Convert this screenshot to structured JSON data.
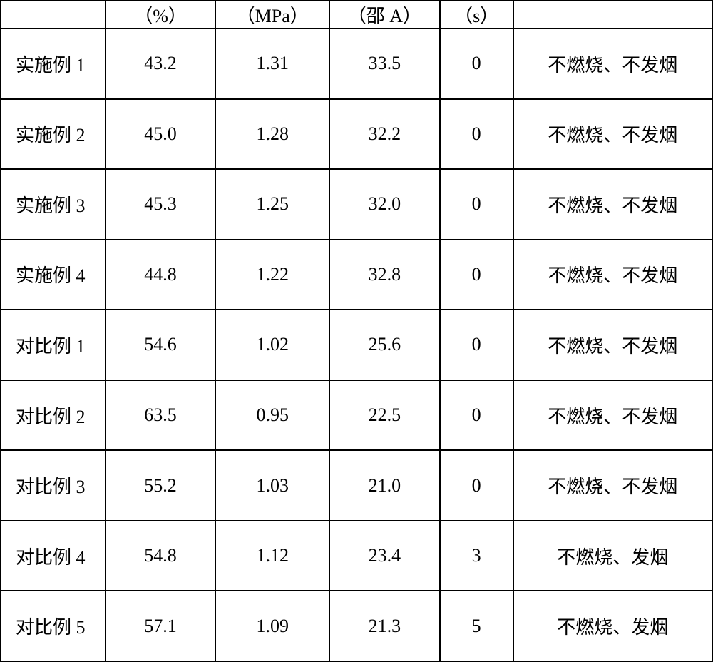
{
  "table": {
    "type": "table",
    "background_color": "#ffffff",
    "border_color": "#000000",
    "text_color": "#000000",
    "font_size": 26,
    "columns": [
      {
        "key": "label",
        "header": "",
        "width_pct": 14.7,
        "align": "left"
      },
      {
        "key": "pct",
        "header": "（%）",
        "width_pct": 15.5,
        "align": "center"
      },
      {
        "key": "mpa",
        "header": "（MPa）",
        "width_pct": 16,
        "align": "center"
      },
      {
        "key": "shore",
        "header": "（邵 A）",
        "width_pct": 15.5,
        "align": "center"
      },
      {
        "key": "s",
        "header": "（s）",
        "width_pct": 10.3,
        "align": "center"
      },
      {
        "key": "desc",
        "header": "",
        "width_pct": 28,
        "align": "center"
      }
    ],
    "rows": [
      {
        "label": "实施例 1",
        "pct": "43.2",
        "mpa": "1.31",
        "shore": "33.5",
        "s": "0",
        "desc": "不燃烧、不发烟"
      },
      {
        "label": "实施例 2",
        "pct": "45.0",
        "mpa": "1.28",
        "shore": "32.2",
        "s": "0",
        "desc": "不燃烧、不发烟"
      },
      {
        "label": "实施例 3",
        "pct": "45.3",
        "mpa": "1.25",
        "shore": "32.0",
        "s": "0",
        "desc": "不燃烧、不发烟"
      },
      {
        "label": "实施例 4",
        "pct": "44.8",
        "mpa": "1.22",
        "shore": "32.8",
        "s": "0",
        "desc": "不燃烧、不发烟"
      },
      {
        "label": "对比例 1",
        "pct": "54.6",
        "mpa": "1.02",
        "shore": "25.6",
        "s": "0",
        "desc": "不燃烧、不发烟"
      },
      {
        "label": "对比例 2",
        "pct": "63.5",
        "mpa": "0.95",
        "shore": "22.5",
        "s": "0",
        "desc": "不燃烧、不发烟"
      },
      {
        "label": "对比例 3",
        "pct": "55.2",
        "mpa": "1.03",
        "shore": "21.0",
        "s": "0",
        "desc": "不燃烧、不发烟"
      },
      {
        "label": "对比例 4",
        "pct": "54.8",
        "mpa": "1.12",
        "shore": "23.4",
        "s": "3",
        "desc": "不燃烧、发烟"
      },
      {
        "label": "对比例 5",
        "pct": "57.1",
        "mpa": "1.09",
        "shore": "21.3",
        "s": "5",
        "desc": "不燃烧、发烟"
      }
    ]
  }
}
